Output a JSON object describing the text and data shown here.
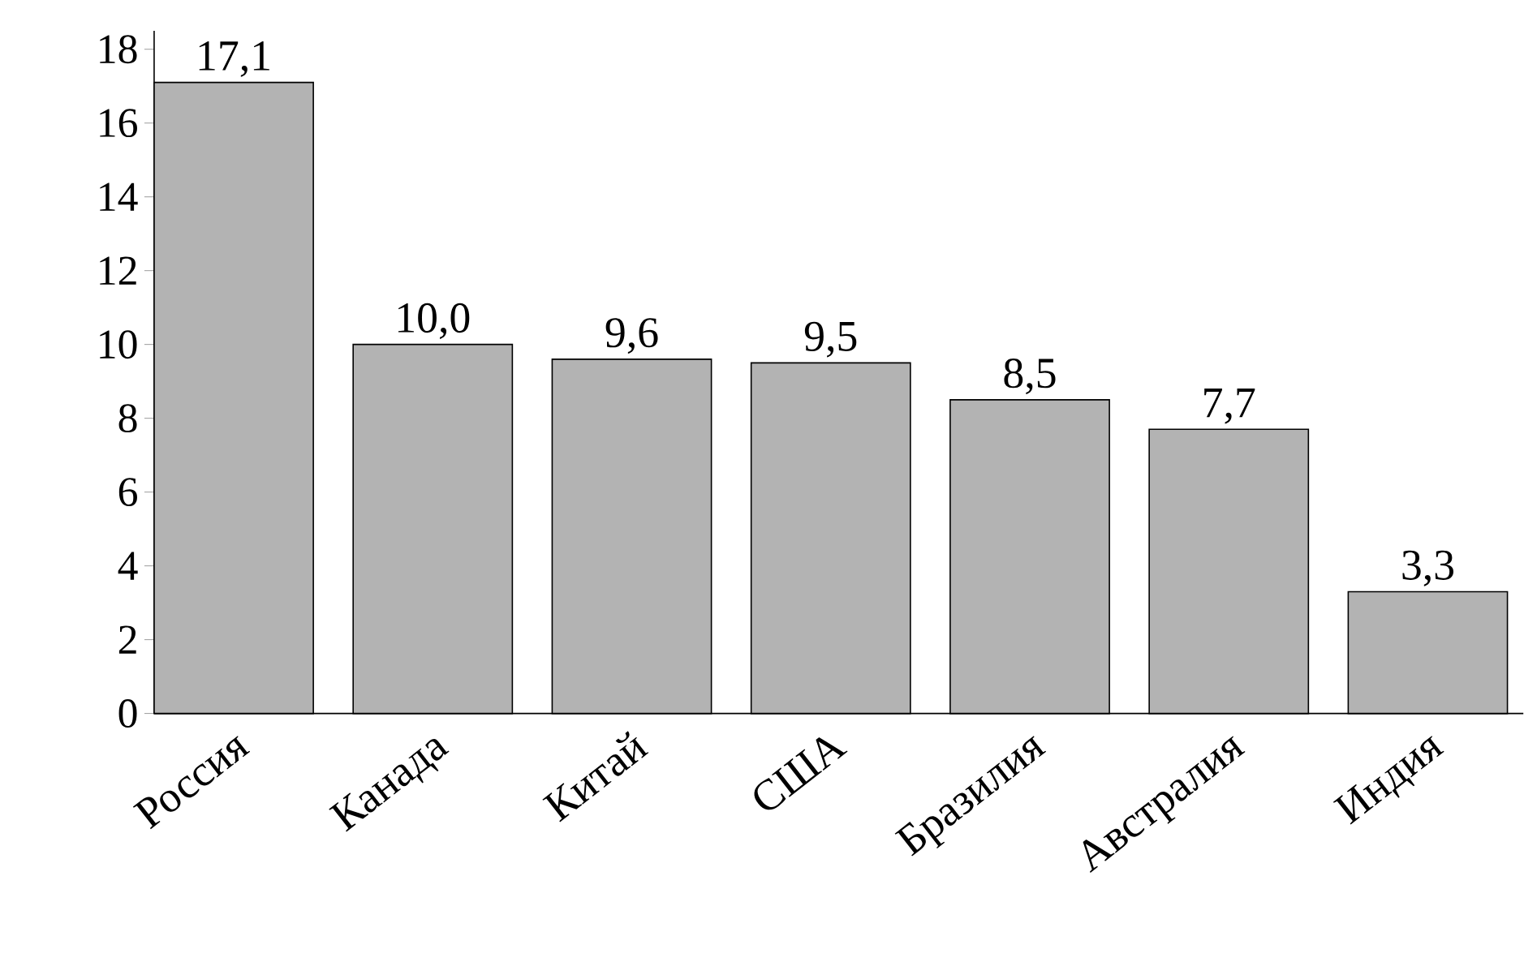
{
  "chart_data": {
    "type": "bar",
    "categories": [
      "Россия",
      "Канада",
      "Китай",
      "США",
      "Бразилия",
      "Австралия",
      "Индия"
    ],
    "values": [
      17.1,
      10.0,
      9.6,
      9.5,
      8.5,
      7.7,
      3.3
    ],
    "value_labels": [
      "17,1",
      "10,0",
      "9,6",
      "9,5",
      "8,5",
      "7,7",
      "3,3"
    ],
    "color": "#b3b3b3",
    "ylim": [
      0,
      18.5
    ],
    "yticks": [
      0,
      2,
      4,
      6,
      8,
      10,
      12,
      14,
      16,
      18
    ],
    "grid": false
  }
}
